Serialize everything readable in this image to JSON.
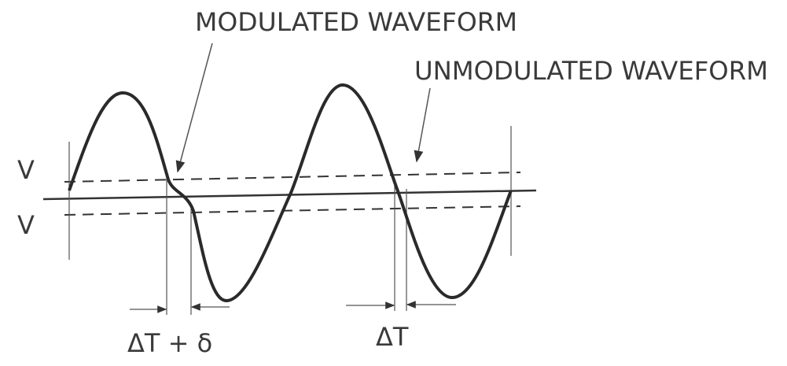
{
  "labels": {
    "modulated": "MODULATED WAVEFORM",
    "unmodulated": "UNMODULATED WAVEFORM",
    "v_upper": "V",
    "v_lower": "V",
    "delta_t_delta": "ΔT + δ",
    "delta_t": "ΔT"
  }
}
